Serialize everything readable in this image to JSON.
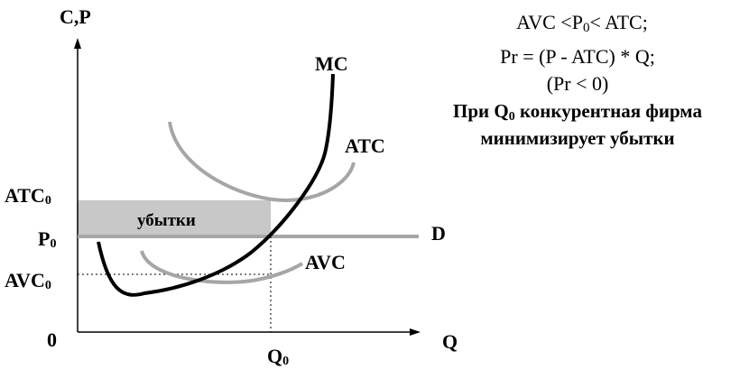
{
  "axes": {
    "y_label": "C,P",
    "x_label": "Q",
    "origin": "0"
  },
  "labels": {
    "atc0": "ATC",
    "atc0_sub": "0",
    "p0": "P",
    "p0_sub": "0",
    "avc0": "AVC",
    "avc0_sub": "0",
    "q0": "Q",
    "q0_sub": "0"
  },
  "curves": {
    "mc": "MC",
    "atc": "ATC",
    "avc": "AVC",
    "demand": "D"
  },
  "loss_region_label": "убытки",
  "annotation": {
    "line1_a": "AVC <P",
    "line1_sub": "0",
    "line1_b": "< ATC;",
    "line2": "Pr = (P - ATC) * Q;",
    "line3": "(Pr < 0)",
    "line4_a": "При Q",
    "line4_sub": "0",
    "line4_b": " конкурентная  фирма",
    "line5": "минимизирует убытки"
  },
  "colors": {
    "axis": "#000000",
    "mc": "#000000",
    "atc": "#a6a6a6",
    "avc": "#a6a6a6",
    "demand": "#a6a6a6",
    "loss_fill": "#c8c8c8"
  }
}
